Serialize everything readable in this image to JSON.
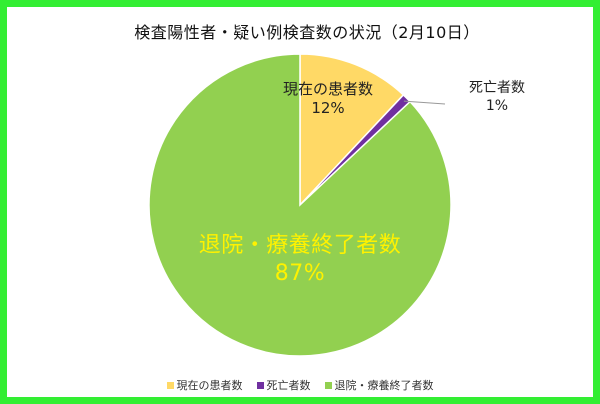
{
  "chart_data": {
    "type": "pie",
    "title": "検査陽性者・疑い例検査数の状況（2月10日）",
    "categories": [
      "現在の患者数",
      "死亡者数",
      "退院・療養終了者数"
    ],
    "values": [
      12,
      1,
      87
    ],
    "value_labels": [
      "12%",
      "1%",
      "87%"
    ],
    "colors": [
      "#ffd966",
      "#7030a0",
      "#92d050"
    ],
    "legend_position": "bottom"
  },
  "page": {
    "border_color": "#33ee33"
  }
}
